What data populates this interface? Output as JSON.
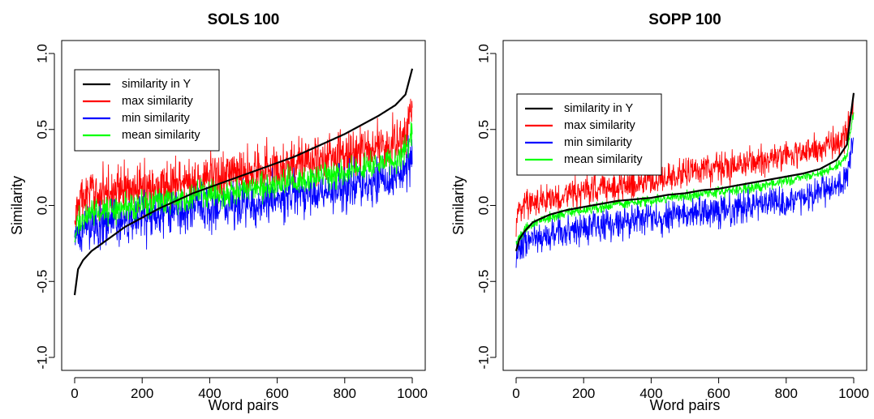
{
  "chart_data": [
    {
      "type": "line",
      "title": "SOLS 100",
      "xlabel": "Word pairs",
      "ylabel": "Similarity",
      "xlim": [
        0,
        1000
      ],
      "ylim": [
        -1.0,
        1.0
      ],
      "x_ticks": [
        0,
        200,
        400,
        600,
        800,
        1000
      ],
      "y_ticks": [
        -1.0,
        -0.5,
        0.0,
        0.5,
        1.0
      ],
      "y_tick_labels": [
        "-1.0",
        "-0.5",
        "0.0",
        "0.5",
        "1.0"
      ],
      "legend_position": "top-left",
      "x": [
        0,
        10,
        25,
        50,
        100,
        150,
        200,
        250,
        300,
        350,
        400,
        450,
        500,
        550,
        600,
        650,
        700,
        750,
        800,
        850,
        900,
        950,
        980,
        1000
      ],
      "series": [
        {
          "name": "similarity in Y",
          "color": "#000000",
          "noise": 0,
          "values": [
            -0.59,
            -0.42,
            -0.36,
            -0.3,
            -0.22,
            -0.14,
            -0.08,
            -0.02,
            0.03,
            0.08,
            0.12,
            0.16,
            0.2,
            0.24,
            0.28,
            0.32,
            0.37,
            0.42,
            0.47,
            0.53,
            0.59,
            0.66,
            0.73,
            0.9
          ]
        },
        {
          "name": "max similarity",
          "color": "#ff0000",
          "noise": 0.16,
          "values": [
            -0.12,
            0.0,
            0.05,
            0.07,
            0.09,
            0.1,
            0.11,
            0.13,
            0.14,
            0.16,
            0.18,
            0.19,
            0.21,
            0.23,
            0.25,
            0.27,
            0.29,
            0.31,
            0.33,
            0.35,
            0.38,
            0.41,
            0.45,
            0.65
          ]
        },
        {
          "name": "min similarity",
          "color": "#0000ff",
          "noise": 0.15,
          "values": [
            -0.27,
            -0.2,
            -0.16,
            -0.13,
            -0.11,
            -0.1,
            -0.08,
            -0.06,
            -0.05,
            -0.03,
            -0.02,
            0.0,
            0.01,
            0.03,
            0.05,
            0.06,
            0.08,
            0.1,
            0.12,
            0.14,
            0.16,
            0.19,
            0.23,
            0.3
          ]
        },
        {
          "name": "mean similarity",
          "color": "#00ff00",
          "noise": 0.09,
          "values": [
            -0.2,
            -0.12,
            -0.08,
            -0.05,
            -0.03,
            -0.01,
            0.01,
            0.03,
            0.04,
            0.06,
            0.08,
            0.09,
            0.11,
            0.13,
            0.14,
            0.16,
            0.18,
            0.2,
            0.22,
            0.24,
            0.27,
            0.3,
            0.34,
            0.5
          ]
        }
      ]
    },
    {
      "type": "line",
      "title": "SOPP 100",
      "xlabel": "Word pairs",
      "ylabel": "Similarity",
      "xlim": [
        0,
        1000
      ],
      "ylim": [
        -1.0,
        1.0
      ],
      "x_ticks": [
        0,
        200,
        400,
        600,
        800,
        1000
      ],
      "y_ticks": [
        -1.0,
        -0.5,
        0.0,
        0.5,
        1.0
      ],
      "y_tick_labels": [
        "-1.0",
        "-0.5",
        "0.0",
        "0.5",
        "1.0"
      ],
      "legend_position": "top-left",
      "x": [
        0,
        10,
        25,
        50,
        100,
        150,
        200,
        250,
        300,
        350,
        400,
        450,
        500,
        550,
        600,
        650,
        700,
        750,
        800,
        850,
        900,
        950,
        980,
        1000
      ],
      "series": [
        {
          "name": "similarity in Y",
          "color": "#000000",
          "noise": 0,
          "values": [
            -0.3,
            -0.22,
            -0.17,
            -0.11,
            -0.06,
            -0.03,
            -0.01,
            0.01,
            0.03,
            0.04,
            0.05,
            0.07,
            0.08,
            0.1,
            0.11,
            0.13,
            0.15,
            0.17,
            0.19,
            0.21,
            0.24,
            0.3,
            0.4,
            0.74
          ]
        },
        {
          "name": "max similarity",
          "color": "#ff0000",
          "noise": 0.1,
          "values": [
            -0.1,
            -0.02,
            0.01,
            0.03,
            0.05,
            0.07,
            0.09,
            0.11,
            0.13,
            0.15,
            0.17,
            0.19,
            0.21,
            0.23,
            0.25,
            0.27,
            0.29,
            0.31,
            0.33,
            0.35,
            0.38,
            0.42,
            0.47,
            0.7
          ]
        },
        {
          "name": "min similarity",
          "color": "#0000ff",
          "noise": 0.1,
          "values": [
            -0.33,
            -0.28,
            -0.25,
            -0.22,
            -0.19,
            -0.16,
            -0.14,
            -0.12,
            -0.11,
            -0.1,
            -0.08,
            -0.07,
            -0.06,
            -0.04,
            -0.03,
            -0.02,
            0.0,
            0.01,
            0.03,
            0.05,
            0.08,
            0.12,
            0.2,
            0.45
          ]
        },
        {
          "name": "mean similarity",
          "color": "#00ff00",
          "noise": 0.035,
          "values": [
            -0.25,
            -0.2,
            -0.16,
            -0.12,
            -0.08,
            -0.05,
            -0.03,
            -0.01,
            0.01,
            0.02,
            0.03,
            0.05,
            0.06,
            0.08,
            0.09,
            0.1,
            0.12,
            0.14,
            0.16,
            0.18,
            0.21,
            0.25,
            0.33,
            0.62
          ]
        }
      ]
    }
  ]
}
